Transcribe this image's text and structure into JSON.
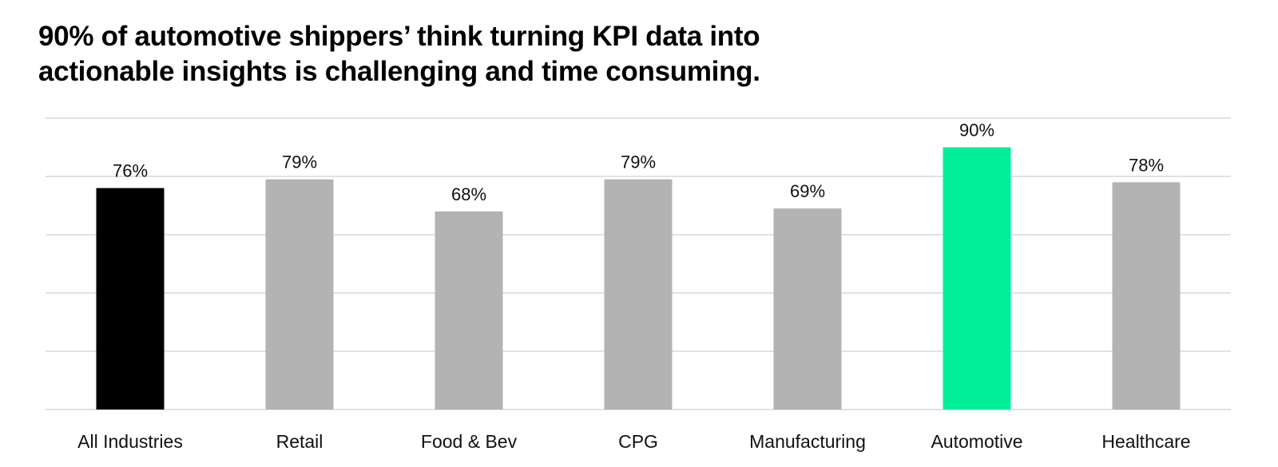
{
  "chart_data": {
    "type": "bar",
    "title_lines": [
      "90% of automotive shippers’ think turning KPI data into",
      "actionable insights is challenging and time consuming."
    ],
    "categories": [
      "All Industries",
      "Retail",
      "Food & Bev",
      "CPG",
      "Manufacturing",
      "Automotive",
      "Healthcare"
    ],
    "values": [
      76,
      79,
      68,
      79,
      69,
      90,
      78
    ],
    "data_labels": [
      "76%",
      "79%",
      "68%",
      "79%",
      "69%",
      "90%",
      "78%"
    ],
    "colors": [
      "#000000",
      "#b3b3b3",
      "#b3b3b3",
      "#b3b3b3",
      "#b3b3b3",
      "#00f09a",
      "#b3b3b3"
    ],
    "ylim": [
      0,
      100
    ],
    "y_gridlines": [
      0,
      20,
      40,
      60,
      80,
      100
    ],
    "grid": true,
    "ytick_labels_shown": false,
    "xlabel": "",
    "ylabel": ""
  }
}
